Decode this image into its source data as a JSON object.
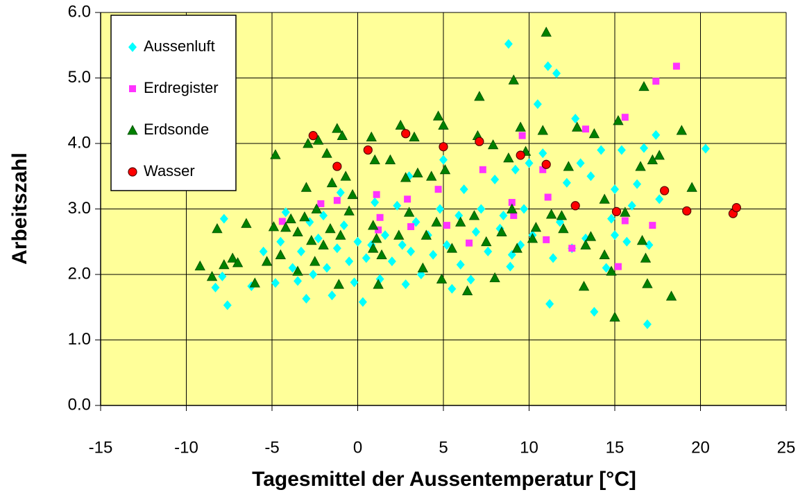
{
  "chart_data": {
    "type": "scatter",
    "x_label": "Tagesmittel der Aussentemperatur [°C]",
    "y_label": "Arbeitszahl",
    "xlim": [
      -15,
      25
    ],
    "xticks": [
      -15,
      -10,
      -5,
      0,
      5,
      10,
      15,
      20,
      25
    ],
    "ylim": [
      0,
      6
    ],
    "yticks": [
      {
        "value": 0,
        "label": "0.0"
      },
      {
        "value": 1,
        "label": "1.0"
      },
      {
        "value": 2,
        "label": "2.0"
      },
      {
        "value": 3,
        "label": "3.0"
      },
      {
        "value": 4,
        "label": "4.0"
      },
      {
        "value": 5,
        "label": "5.0"
      },
      {
        "value": 6,
        "label": "6.0"
      }
    ],
    "grid": true,
    "legend": "upper left",
    "background": "#ffff99",
    "series": [
      {
        "name": "Aussenluft",
        "color": "#00ffff",
        "marker": "diamond",
        "x": [
          -8.3,
          -7.9,
          -7.8,
          -7.6,
          -6.2,
          -5.5,
          -4.8,
          -4.5,
          -4.2,
          -3.8,
          -3.5,
          -3.3,
          -3,
          -2.8,
          -2.6,
          -2.3,
          -2,
          -1.8,
          -1.5,
          -1.2,
          -0.8,
          -0.5,
          -0.2,
          0.3,
          0.5,
          0.8,
          1,
          1.3,
          1.6,
          2,
          2.3,
          2.6,
          2.8,
          3.1,
          3.4,
          3.7,
          4.1,
          4.4,
          4.8,
          5,
          5.2,
          5.5,
          5.9,
          6.2,
          6.6,
          6.9,
          7.2,
          7.6,
          8,
          8.3,
          8.5,
          8.8,
          8.9,
          9.2,
          9.5,
          9.7,
          10,
          10.2,
          10.5,
          10.8,
          11.1,
          11.2,
          11.4,
          11.6,
          11.8,
          12.2,
          12.7,
          13,
          13.3,
          13.6,
          13.8,
          14.2,
          14.5,
          14.8,
          15,
          15.4,
          15.7,
          16,
          16.3,
          16.7,
          16.9,
          17,
          17.4,
          17.6,
          20.3,
          -1,
          0,
          3,
          6,
          9,
          12.5,
          15
        ],
        "values": [
          1.8,
          1.97,
          2.85,
          1.53,
          1.82,
          2.35,
          1.87,
          2.5,
          2.95,
          2.1,
          1.9,
          2.35,
          1.63,
          2.8,
          2.0,
          2.55,
          2.9,
          2.1,
          1.68,
          2.4,
          2.75,
          2.2,
          1.88,
          1.58,
          2.25,
          2.45,
          3.1,
          1.93,
          2.6,
          2.2,
          3.05,
          2.45,
          1.85,
          2.35,
          2.8,
          2.0,
          2.6,
          2.3,
          3.0,
          3.75,
          2.45,
          1.78,
          2.9,
          3.3,
          1.92,
          2.65,
          3.0,
          2.35,
          3.45,
          2.7,
          2.9,
          5.52,
          2.12,
          3.6,
          2.45,
          3.0,
          3.7,
          2.6,
          4.6,
          3.85,
          5.18,
          1.55,
          2.25,
          5.07,
          2.8,
          3.4,
          4.38,
          3.7,
          2.55,
          3.5,
          1.43,
          3.9,
          2.1,
          2.85,
          3.3,
          3.9,
          2.5,
          3.05,
          3.38,
          3.93,
          1.24,
          2.45,
          4.13,
          3.15,
          3.92,
          3.25,
          2.5,
          3.5,
          2.15,
          2.3,
          2.4,
          2.6
        ]
      },
      {
        "name": "Erdregister",
        "color": "#ff33ff",
        "marker": "square",
        "x": [
          -4.4,
          -2.15,
          -1.2,
          1.1,
          1.3,
          1.2,
          2.9,
          3.1,
          4.7,
          5.2,
          6.5,
          7.3,
          9,
          9.1,
          9.6,
          10.8,
          11.1,
          11,
          12.5,
          13.3,
          15.2,
          15.6,
          15.6,
          17.2,
          17.4,
          18.6
        ],
        "values": [
          2.81,
          3.08,
          3.13,
          3.22,
          2.87,
          2.68,
          3.15,
          2.73,
          3.3,
          2.75,
          2.48,
          3.6,
          3.1,
          2.9,
          4.12,
          3.6,
          3.18,
          2.53,
          2.4,
          4.22,
          2.12,
          4.4,
          2.82,
          2.75,
          4.95,
          5.18
        ]
      },
      {
        "name": "Erdsonde",
        "color": "#008000",
        "marker": "triangle",
        "x": [
          -9.2,
          -8.5,
          -8.2,
          -7.8,
          -7.3,
          -7,
          -6.5,
          -6,
          -5.3,
          -4.9,
          -4.8,
          -4.5,
          -4.2,
          -3.9,
          -3.5,
          -3.1,
          -3,
          -2.9,
          -2.7,
          -2.5,
          -2.4,
          -2.3,
          -2,
          -1.8,
          -1.6,
          -1.5,
          -1.2,
          -1.1,
          -1,
          -0.9,
          -0.7,
          -0.5,
          -0.3,
          0.8,
          0.9,
          1,
          1.1,
          1.2,
          1.4,
          1.9,
          2.5,
          2.8,
          3,
          3.3,
          3.5,
          4,
          4.3,
          4.6,
          4.7,
          4.9,
          5,
          5.1,
          5.5,
          6.4,
          6.8,
          7,
          7.1,
          7.5,
          7.9,
          8.4,
          8.8,
          9,
          9.1,
          9.3,
          9.5,
          9.8,
          10.4,
          10.8,
          11,
          11.3,
          11.9,
          12.3,
          12.8,
          13.2,
          13.3,
          13.6,
          13.8,
          14.4,
          14.8,
          15,
          15.2,
          15.6,
          16.5,
          16.7,
          16.8,
          16.9,
          17.2,
          17.6,
          18.3,
          18.9,
          19.5,
          0.9,
          2.4,
          3.8,
          6,
          8,
          10.2,
          12,
          14.4,
          16.6,
          -3.5
        ],
        "values": [
          2.13,
          1.97,
          2.7,
          2.15,
          2.25,
          2.18,
          2.78,
          1.87,
          2.2,
          2.73,
          3.83,
          2.3,
          2.72,
          2.85,
          2.65,
          2.88,
          3.33,
          4.0,
          2.52,
          2.2,
          3.0,
          4.05,
          2.45,
          3.85,
          2.7,
          3.4,
          4.23,
          1.85,
          2.6,
          4.12,
          3.5,
          2.97,
          3.22,
          4.1,
          2.75,
          3.75,
          2.55,
          1.85,
          2.3,
          3.75,
          4.28,
          3.48,
          2.95,
          4.1,
          3.55,
          2.6,
          3.5,
          2.8,
          4.42,
          1.93,
          4.28,
          3.6,
          2.4,
          1.75,
          2.9,
          4.12,
          4.72,
          2.5,
          3.98,
          2.65,
          3.78,
          3.0,
          4.97,
          2.4,
          4.25,
          3.88,
          2.72,
          4.2,
          5.7,
          2.92,
          2.9,
          3.65,
          4.25,
          1.82,
          2.45,
          2.58,
          4.15,
          3.15,
          2.05,
          1.35,
          4.35,
          2.95,
          3.65,
          4.87,
          2.25,
          1.86,
          3.75,
          3.82,
          1.67,
          4.2,
          3.33,
          2.4,
          2.6,
          2.1,
          2.8,
          1.95,
          2.55,
          2.7,
          2.3,
          2.52,
          2.05
        ]
      },
      {
        "name": "Wasser",
        "color": "#ff0000",
        "marker": "circle",
        "x": [
          -2.6,
          -1.2,
          0.6,
          2.8,
          5,
          7.1,
          9.5,
          11,
          12.7,
          15.1,
          17.9,
          19.2,
          21.9,
          22.1
        ],
        "values": [
          4.12,
          3.65,
          3.9,
          4.15,
          3.95,
          4.03,
          3.82,
          3.68,
          3.05,
          2.96,
          3.28,
          2.97,
          2.93,
          3.02
        ]
      }
    ]
  }
}
